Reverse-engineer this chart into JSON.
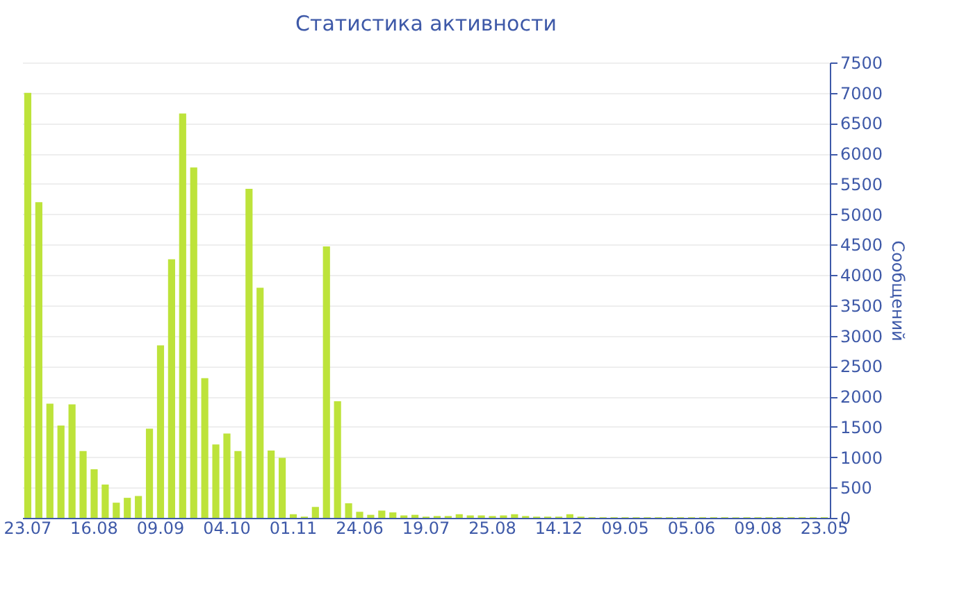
{
  "chart_data": {
    "type": "bar",
    "title": "Статистика активности",
    "ylabel": "Сообщений",
    "categories": [
      "23.07",
      null,
      null,
      null,
      null,
      null,
      "16.08",
      null,
      null,
      null,
      null,
      null,
      "09.09",
      null,
      null,
      null,
      null,
      null,
      "04.10",
      null,
      null,
      null,
      null,
      null,
      "01.11",
      null,
      null,
      null,
      null,
      null,
      "24.06",
      null,
      null,
      null,
      null,
      null,
      "19.07",
      null,
      null,
      null,
      null,
      null,
      "25.08",
      null,
      null,
      null,
      null,
      null,
      "14.12",
      null,
      null,
      null,
      null,
      null,
      "09.05",
      null,
      null,
      null,
      null,
      null,
      "05.06",
      null,
      null,
      null,
      null,
      null,
      "09.08",
      null,
      null,
      null,
      null,
      null,
      "23.05"
    ],
    "values": [
      7000,
      5200,
      1880,
      1520,
      1870,
      1100,
      800,
      550,
      250,
      330,
      360,
      1470,
      2840,
      4260,
      6660,
      5770,
      2300,
      1210,
      1390,
      1100,
      5420,
      3790,
      1110,
      990,
      60,
      20,
      180,
      4470,
      1920,
      240,
      100,
      50,
      120,
      90,
      40,
      50,
      20,
      30,
      30,
      60,
      40,
      40,
      30,
      40,
      60,
      30,
      20,
      20,
      20,
      60,
      20,
      10,
      10,
      10,
      10,
      10,
      10,
      10,
      10,
      10,
      10,
      10,
      10,
      10,
      10,
      10,
      10,
      10,
      10,
      10,
      10,
      10,
      10
    ],
    "color": "#bde33a",
    "ylim": [
      0,
      7500
    ],
    "yticks": [
      0,
      500,
      1000,
      1500,
      2000,
      2500,
      3000,
      3500,
      4000,
      4500,
      5000,
      5500,
      6000,
      6500,
      7000,
      7500
    ],
    "grid": "y"
  }
}
